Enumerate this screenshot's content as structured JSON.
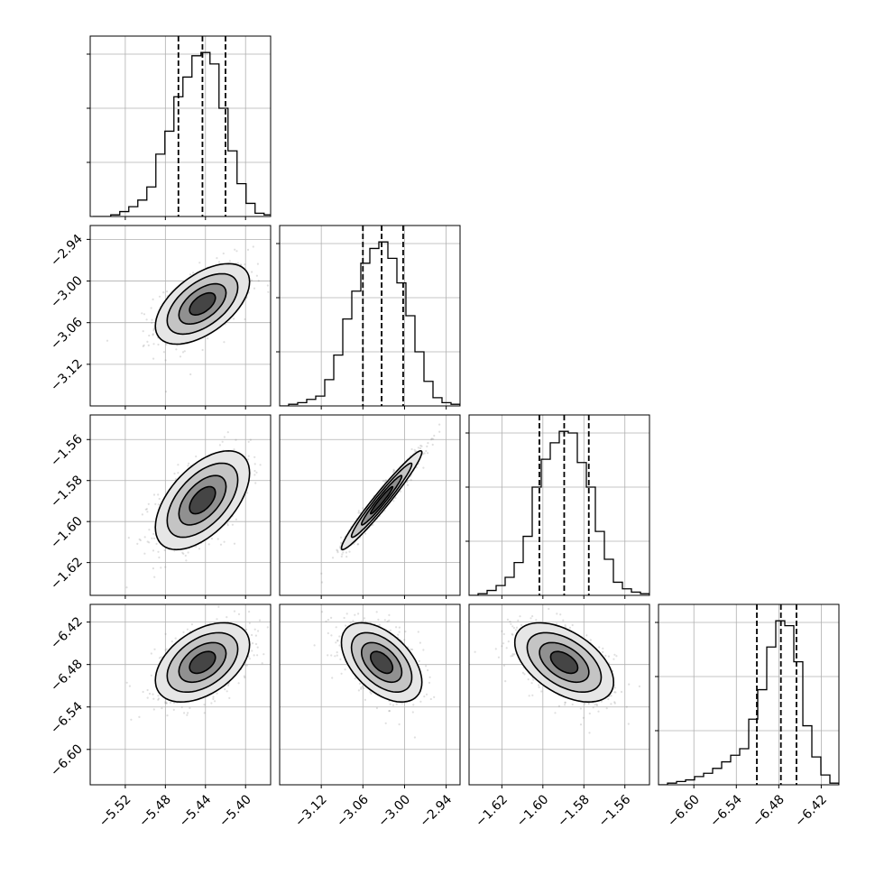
{
  "chart_data": {
    "type": "corner",
    "n_params": 4,
    "colors": {
      "line": "#000000",
      "grid": "#b0b0b0",
      "points": "#808080",
      "background": "#ffffff"
    },
    "grid": true,
    "quantiles": [
      0.16,
      0.5,
      0.84
    ],
    "params": [
      {
        "index": 0,
        "median": -5.443,
        "q16": -5.467,
        "q84": -5.42,
        "range": [
          -5.555,
          -5.375
        ],
        "ticks": [
          -5.52,
          -5.48,
          -5.44,
          -5.4
        ],
        "tick_labels": [
          "−5.52",
          "−5.48",
          "−5.44",
          "−5.40"
        ],
        "hist_centers": [
          -5.548,
          -5.539,
          -5.53,
          -5.521,
          -5.512,
          -5.503,
          -5.494,
          -5.485,
          -5.476,
          -5.467,
          -5.458,
          -5.449,
          -5.44,
          -5.431,
          -5.422,
          -5.413,
          -5.404,
          -5.395,
          -5.386,
          -5.377
        ],
        "hist_counts": [
          0.0,
          0.0,
          0.01,
          0.03,
          0.06,
          0.1,
          0.18,
          0.38,
          0.52,
          0.73,
          0.85,
          0.98,
          1.0,
          0.93,
          0.66,
          0.4,
          0.2,
          0.08,
          0.02,
          0.01
        ]
      },
      {
        "index": 1,
        "median": -3.033,
        "q16": -3.06,
        "q84": -3.002,
        "range": [
          -3.18,
          -2.92
        ],
        "ticks": [
          -3.12,
          -3.06,
          -3.0,
          -2.94
        ],
        "tick_labels": [
          "−3.12",
          "−3.06",
          "−3.00",
          "−2.94"
        ],
        "hist_centers": [
          -3.1735,
          -3.1605,
          -3.1475,
          -3.1345,
          -3.1215,
          -3.1085,
          -3.0955,
          -3.0825,
          -3.0695,
          -3.0565,
          -3.0435,
          -3.0305,
          -3.0175,
          -3.0045,
          -2.9915,
          -2.9785,
          -2.9655,
          -2.9525,
          -2.9395,
          -2.9265
        ],
        "hist_counts": [
          0.0,
          0.01,
          0.02,
          0.04,
          0.06,
          0.16,
          0.31,
          0.53,
          0.7,
          0.87,
          0.96,
          1.0,
          0.9,
          0.75,
          0.55,
          0.33,
          0.15,
          0.05,
          0.02,
          0.01
        ]
      },
      {
        "index": 2,
        "median": -1.5896,
        "q16": -1.6017,
        "q84": -1.5776,
        "range": [
          -1.636,
          -1.548
        ],
        "ticks": [
          -1.62,
          -1.6,
          -1.58,
          -1.56
        ],
        "tick_labels": [
          "−1.62",
          "−1.60",
          "−1.58",
          "−1.56"
        ],
        "hist_centers": [
          -1.6338,
          -1.6294,
          -1.625,
          -1.6206,
          -1.6162,
          -1.6118,
          -1.6074,
          -1.603,
          -1.5986,
          -1.5942,
          -1.5898,
          -1.5854,
          -1.581,
          -1.5766,
          -1.5722,
          -1.5678,
          -1.5634,
          -1.559,
          -1.5546,
          -1.5502
        ],
        "hist_counts": [
          0.0,
          0.01,
          0.03,
          0.06,
          0.11,
          0.2,
          0.36,
          0.66,
          0.83,
          0.93,
          1.0,
          0.99,
          0.81,
          0.66,
          0.39,
          0.22,
          0.08,
          0.04,
          0.02,
          0.01
        ]
      },
      {
        "index": 3,
        "median": -6.477,
        "q16": -6.511,
        "q84": -6.455,
        "range": [
          -6.65,
          -6.395
        ],
        "ticks": [
          -6.6,
          -6.54,
          -6.48,
          -6.42
        ],
        "tick_labels": [
          "−6.60",
          "−6.54",
          "−6.48",
          "−6.42"
        ],
        "hist_centers": [
          -6.6436,
          -6.6309,
          -6.6181,
          -6.6054,
          -6.5926,
          -6.5799,
          -6.5671,
          -6.5544,
          -6.5416,
          -6.5289,
          -6.5161,
          -6.5034,
          -6.4906,
          -6.4779,
          -6.4651,
          -6.4524,
          -6.4396,
          -6.4269,
          -6.4141,
          -6.4014
        ],
        "hist_counts": [
          0.0,
          0.01,
          0.02,
          0.03,
          0.05,
          0.07,
          0.1,
          0.14,
          0.18,
          0.22,
          0.4,
          0.58,
          0.84,
          1.0,
          0.97,
          0.75,
          0.36,
          0.17,
          0.06,
          0.01
        ]
      }
    ],
    "correlations": [
      {
        "x": 0,
        "y": 1,
        "rho": 0.55
      },
      {
        "x": 0,
        "y": 2,
        "rho": 0.55
      },
      {
        "x": 1,
        "y": 2,
        "rho": 0.97
      },
      {
        "x": 0,
        "y": 3,
        "rho": 0.45
      },
      {
        "x": 1,
        "y": 3,
        "rho": -0.5
      },
      {
        "x": 2,
        "y": 3,
        "rho": -0.5
      }
    ]
  }
}
